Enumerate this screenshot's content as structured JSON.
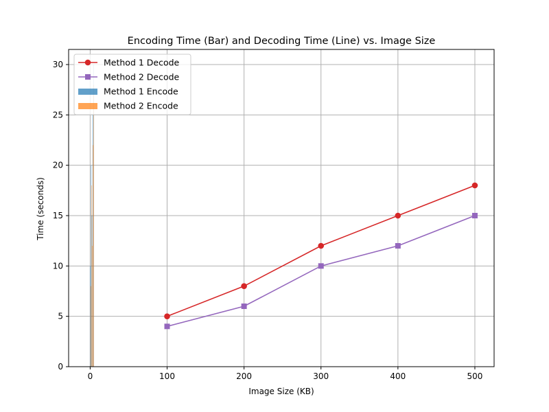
{
  "chart_data": {
    "type": "bar",
    "title": "Encoding Time (Bar) and Decoding Time (Line) vs. Image Size",
    "xlabel": "Image Size (KB)",
    "ylabel": "Time (seconds)",
    "xlim": [
      -28,
      525
    ],
    "ylim": [
      0,
      31.5
    ],
    "xticks": [
      0,
      100,
      200,
      300,
      400,
      500
    ],
    "yticks": [
      0,
      5,
      10,
      15,
      20,
      25,
      30
    ],
    "grid": true,
    "legend_position": "top-left",
    "bars": [
      {
        "name": "Method 1 Encode",
        "color": "#1f77b4",
        "opacity": 0.7,
        "points": [
          {
            "x": 0.0,
            "width": 0.35,
            "value": 10
          },
          {
            "x": 1.0,
            "width": 0.35,
            "value": 20
          },
          {
            "x": 2.0,
            "width": 0.35,
            "value": 15
          },
          {
            "x": 3.0,
            "width": 0.35,
            "value": 25
          },
          {
            "x": 4.0,
            "width": 0.35,
            "value": 30
          }
        ]
      },
      {
        "name": "Method 2 Encode",
        "color": "#ff7f0e",
        "opacity": 0.7,
        "points": [
          {
            "x": 0.35,
            "width": 0.35,
            "value": 8
          },
          {
            "x": 1.35,
            "width": 0.35,
            "value": 18
          },
          {
            "x": 2.35,
            "width": 0.35,
            "value": 12
          },
          {
            "x": 3.35,
            "width": 0.35,
            "value": 22
          },
          {
            "x": 4.35,
            "width": 0.35,
            "value": 28
          }
        ]
      }
    ],
    "series": [
      {
        "name": "Method 1 Decode",
        "color": "#d62728",
        "marker": "circle",
        "x": [
          100,
          200,
          300,
          400,
          500
        ],
        "values": [
          5,
          8,
          12,
          15,
          18
        ]
      },
      {
        "name": "Method 2 Decode",
        "color": "#9467bd",
        "marker": "square",
        "x": [
          100,
          200,
          300,
          400,
          500
        ],
        "values": [
          4,
          6,
          10,
          12,
          15
        ]
      }
    ]
  }
}
